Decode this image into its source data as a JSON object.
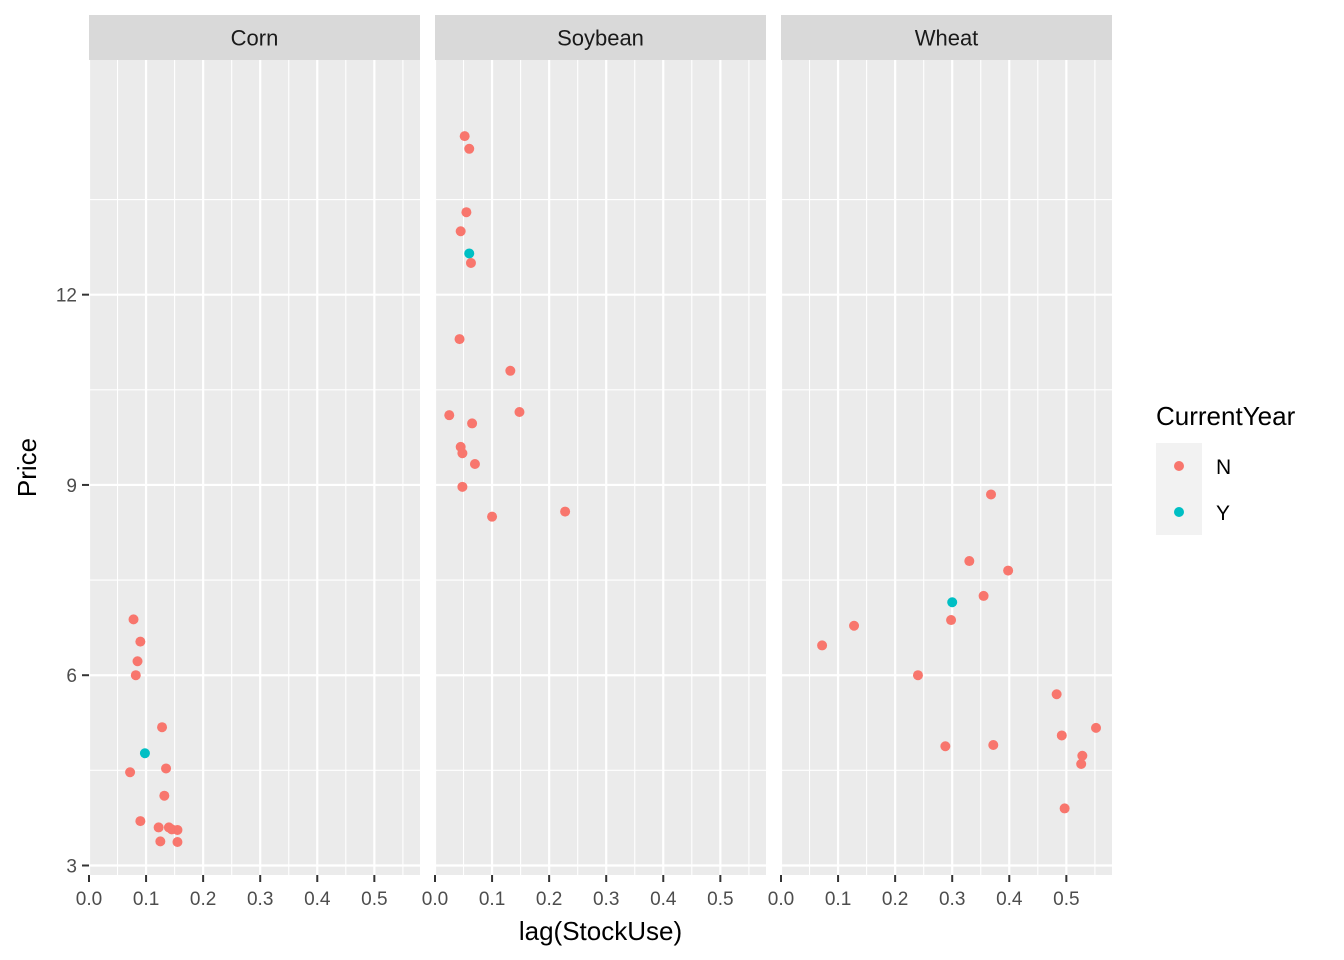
{
  "chart_data": {
    "type": "scatter",
    "xlabel": "lag(StockUse)",
    "ylabel": "Price",
    "xlim": [
      0.0,
      0.58
    ],
    "ylim": [
      2.85,
      15.7
    ],
    "x_ticks": [
      0.0,
      0.1,
      0.2,
      0.3,
      0.4,
      0.5
    ],
    "x_tick_labels": [
      "0.0",
      "0.1",
      "0.2",
      "0.3",
      "0.4",
      "0.5"
    ],
    "y_ticks": [
      3,
      6,
      9,
      12
    ],
    "y_tick_labels": [
      "3",
      "6",
      "9",
      "12"
    ],
    "grid": true,
    "legend": {
      "title": "CurrentYear",
      "placement": "right",
      "entries": [
        {
          "label": "N",
          "color": "#F8766D"
        },
        {
          "label": "Y",
          "color": "#00BFC4"
        }
      ]
    },
    "facets": [
      {
        "label": "Corn",
        "points": [
          {
            "x": 0.078,
            "y": 6.88,
            "group": "N"
          },
          {
            "x": 0.09,
            "y": 6.53,
            "group": "N"
          },
          {
            "x": 0.085,
            "y": 6.22,
            "group": "N"
          },
          {
            "x": 0.082,
            "y": 6.0,
            "group": "N"
          },
          {
            "x": 0.128,
            "y": 5.18,
            "group": "N"
          },
          {
            "x": 0.098,
            "y": 4.77,
            "group": "Y"
          },
          {
            "x": 0.135,
            "y": 4.53,
            "group": "N"
          },
          {
            "x": 0.072,
            "y": 4.47,
            "group": "N"
          },
          {
            "x": 0.132,
            "y": 4.1,
            "group": "N"
          },
          {
            "x": 0.09,
            "y": 3.7,
            "group": "N"
          },
          {
            "x": 0.122,
            "y": 3.6,
            "group": "N"
          },
          {
            "x": 0.14,
            "y": 3.6,
            "group": "N"
          },
          {
            "x": 0.145,
            "y": 3.57,
            "group": "N"
          },
          {
            "x": 0.155,
            "y": 3.56,
            "group": "N"
          },
          {
            "x": 0.125,
            "y": 3.38,
            "group": "N"
          },
          {
            "x": 0.155,
            "y": 3.37,
            "group": "N"
          }
        ]
      },
      {
        "label": "Soybean",
        "points": [
          {
            "x": 0.052,
            "y": 14.5,
            "group": "N"
          },
          {
            "x": 0.06,
            "y": 14.3,
            "group": "N"
          },
          {
            "x": 0.055,
            "y": 13.3,
            "group": "N"
          },
          {
            "x": 0.045,
            "y": 13.0,
            "group": "N"
          },
          {
            "x": 0.06,
            "y": 12.65,
            "group": "Y"
          },
          {
            "x": 0.063,
            "y": 12.5,
            "group": "N"
          },
          {
            "x": 0.043,
            "y": 11.3,
            "group": "N"
          },
          {
            "x": 0.132,
            "y": 10.8,
            "group": "N"
          },
          {
            "x": 0.025,
            "y": 10.1,
            "group": "N"
          },
          {
            "x": 0.148,
            "y": 10.15,
            "group": "N"
          },
          {
            "x": 0.065,
            "y": 9.97,
            "group": "N"
          },
          {
            "x": 0.045,
            "y": 9.6,
            "group": "N"
          },
          {
            "x": 0.048,
            "y": 9.5,
            "group": "N"
          },
          {
            "x": 0.07,
            "y": 9.33,
            "group": "N"
          },
          {
            "x": 0.048,
            "y": 8.97,
            "group": "N"
          },
          {
            "x": 0.228,
            "y": 8.58,
            "group": "N"
          },
          {
            "x": 0.1,
            "y": 8.5,
            "group": "N"
          }
        ]
      },
      {
        "label": "Wheat",
        "points": [
          {
            "x": 0.368,
            "y": 8.85,
            "group": "N"
          },
          {
            "x": 0.33,
            "y": 7.8,
            "group": "N"
          },
          {
            "x": 0.398,
            "y": 7.65,
            "group": "N"
          },
          {
            "x": 0.355,
            "y": 7.25,
            "group": "N"
          },
          {
            "x": 0.3,
            "y": 7.15,
            "group": "Y"
          },
          {
            "x": 0.298,
            "y": 6.87,
            "group": "N"
          },
          {
            "x": 0.128,
            "y": 6.78,
            "group": "N"
          },
          {
            "x": 0.072,
            "y": 6.47,
            "group": "N"
          },
          {
            "x": 0.24,
            "y": 6.0,
            "group": "N"
          },
          {
            "x": 0.483,
            "y": 5.7,
            "group": "N"
          },
          {
            "x": 0.552,
            "y": 5.17,
            "group": "N"
          },
          {
            "x": 0.492,
            "y": 5.05,
            "group": "N"
          },
          {
            "x": 0.372,
            "y": 4.9,
            "group": "N"
          },
          {
            "x": 0.288,
            "y": 4.88,
            "group": "N"
          },
          {
            "x": 0.528,
            "y": 4.73,
            "group": "N"
          },
          {
            "x": 0.526,
            "y": 4.6,
            "group": "N"
          },
          {
            "x": 0.497,
            "y": 3.9,
            "group": "N"
          }
        ]
      }
    ]
  }
}
